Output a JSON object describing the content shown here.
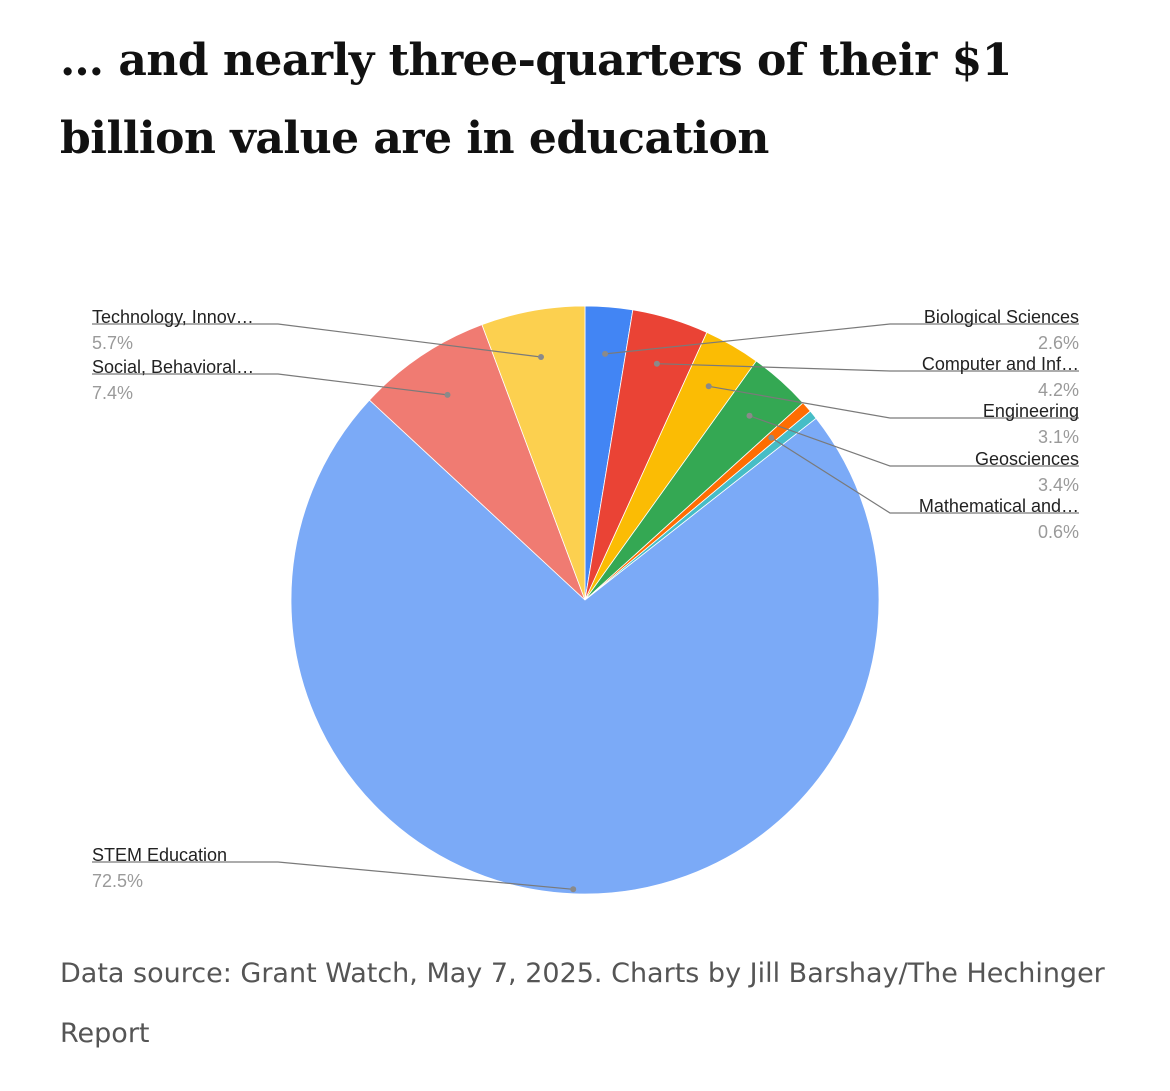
{
  "title": "… and nearly three-quarters of their $1 billion value are in education",
  "source": "Data source: Grant Watch, May 7, 2025. Charts by Jill Barshay/The Hechinger Report",
  "chart_data": {
    "type": "pie",
    "title": "",
    "start_angle_deg": 0,
    "direction": "clockwise",
    "slices": [
      {
        "label": "Biological Sciences",
        "value": 2.6,
        "pct_label": "2.6%",
        "color": "#4285f4"
      },
      {
        "label": "Computer and Inf…",
        "value": 4.2,
        "pct_label": "4.2%",
        "color": "#ea4335"
      },
      {
        "label": "Engineering",
        "value": 3.1,
        "pct_label": "3.1%",
        "color": "#fbbc04"
      },
      {
        "label": "Geosciences",
        "value": 3.4,
        "pct_label": "3.4%",
        "color": "#34a853"
      },
      {
        "label": "Mathematical and…",
        "value": 0.6,
        "pct_label": "0.6%",
        "color": "#ff6d01"
      },
      {
        "label": "",
        "value": 0.5,
        "pct_label": "",
        "color": "#46bdc6"
      },
      {
        "label": "STEM Education",
        "value": 72.5,
        "pct_label": "72.5%",
        "color": "#7baaf7"
      },
      {
        "label": "Social, Behavioral…",
        "value": 7.4,
        "pct_label": "7.4%",
        "color": "#f07b72"
      },
      {
        "label": "Technology, Innov…",
        "value": 5.7,
        "pct_label": "5.7%",
        "color": "#fcd04f"
      }
    ]
  }
}
